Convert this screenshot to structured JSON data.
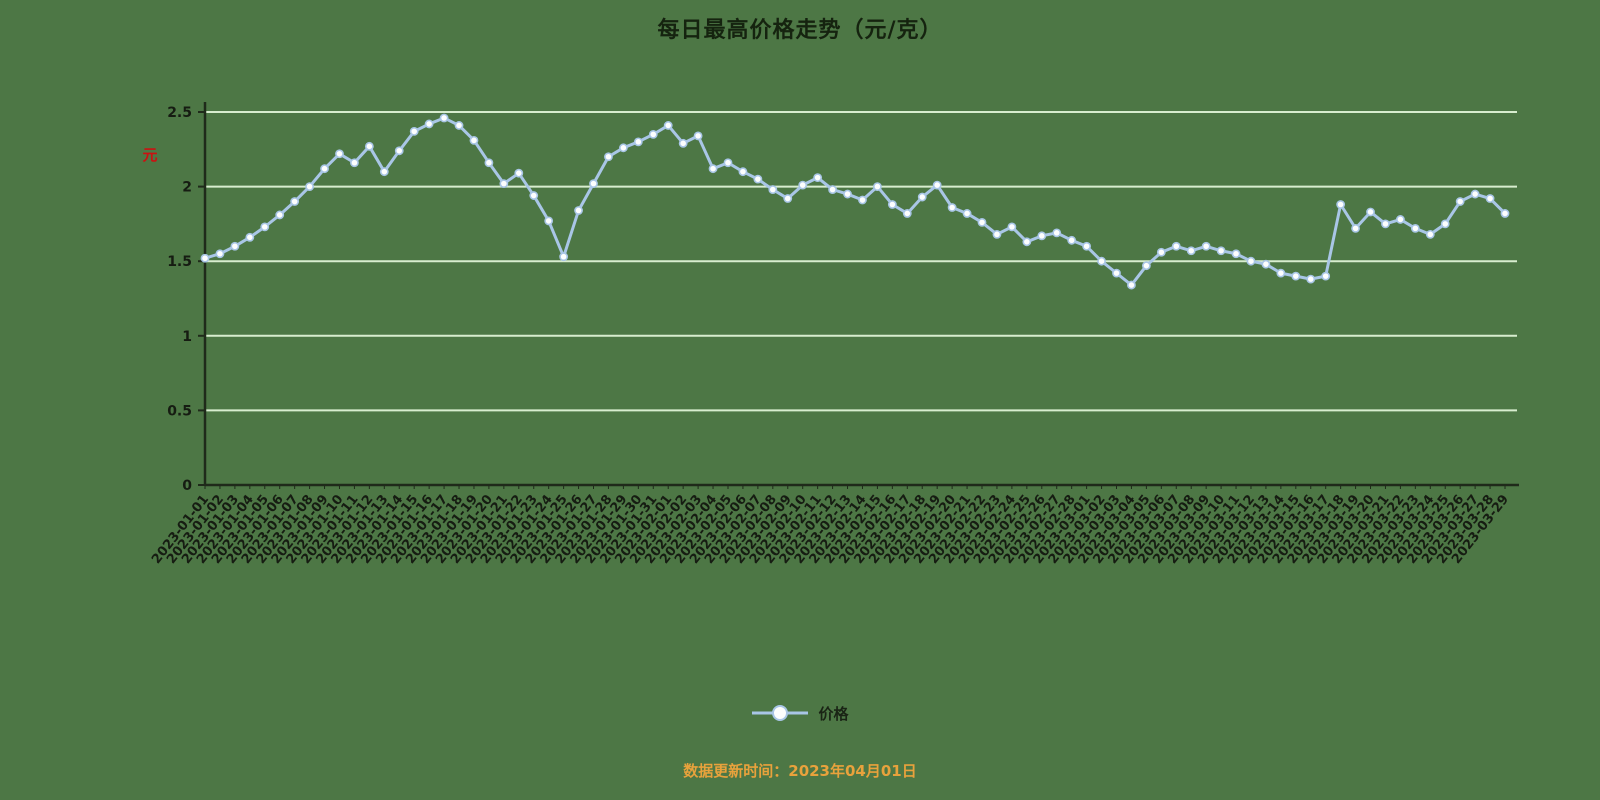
{
  "title": "每日最高价格走势（元/克）",
  "y_axis_unit": "元",
  "legend": {
    "label": "价格"
  },
  "caption": "数据更新时间：2023年04月01日",
  "colors": {
    "background": "#4d7745",
    "grid": "#d8edcf",
    "axis": "#1f2a1a",
    "label": "#161c12",
    "unit": "#cc1111",
    "line": "#a9c6e6",
    "marker_fill": "#fdfefe",
    "caption": "#e8a23c"
  },
  "chart_data": {
    "type": "line",
    "series_name": "价格",
    "title": "每日最高价格走势（元/克）",
    "xlabel": "",
    "ylabel": "元",
    "ylim": [
      0,
      2.5
    ],
    "y_ticks": [
      0,
      0.5,
      1,
      1.5,
      2,
      2.5
    ],
    "y_tick_labels": [
      "0",
      "0.5",
      "1",
      "1.5",
      "2",
      "2.5"
    ],
    "grid": true,
    "legend_position": "bottom",
    "line_color": "#a9c6e6",
    "marker": "circle-white",
    "x": [
      "2023-01-01",
      "2023-01-02",
      "2023-01-03",
      "2023-01-04",
      "2023-01-05",
      "2023-01-06",
      "2023-01-07",
      "2023-01-08",
      "2023-01-09",
      "2023-01-10",
      "2023-01-11",
      "2023-01-12",
      "2023-01-13",
      "2023-01-14",
      "2023-01-15",
      "2023-01-16",
      "2023-01-17",
      "2023-01-18",
      "2023-01-19",
      "2023-01-20",
      "2023-01-21",
      "2023-01-22",
      "2023-01-23",
      "2023-01-24",
      "2023-01-25",
      "2023-01-26",
      "2023-01-27",
      "2023-01-28",
      "2023-01-29",
      "2023-01-30",
      "2023-01-31",
      "2023-02-01",
      "2023-02-02",
      "2023-02-03",
      "2023-02-04",
      "2023-02-05",
      "2023-02-06",
      "2023-02-07",
      "2023-02-08",
      "2023-02-09",
      "2023-02-10",
      "2023-02-11",
      "2023-02-12",
      "2023-02-13",
      "2023-02-14",
      "2023-02-15",
      "2023-02-16",
      "2023-02-17",
      "2023-02-18",
      "2023-02-19",
      "2023-02-20",
      "2023-02-21",
      "2023-02-22",
      "2023-02-23",
      "2023-02-24",
      "2023-02-25",
      "2023-02-26",
      "2023-02-27",
      "2023-02-28",
      "2023-03-01",
      "2023-03-02",
      "2023-03-03",
      "2023-03-04",
      "2023-03-05",
      "2023-03-06",
      "2023-03-07",
      "2023-03-08",
      "2023-03-09",
      "2023-03-10",
      "2023-03-11",
      "2023-03-12",
      "2023-03-13",
      "2023-03-14",
      "2023-03-15",
      "2023-03-16",
      "2023-03-17",
      "2023-03-18",
      "2023-03-19",
      "2023-03-20",
      "2023-03-21",
      "2023-03-22",
      "2023-03-23",
      "2023-03-24",
      "2023-03-25",
      "2023-03-26",
      "2023-03-27",
      "2023-03-28",
      "2023-03-29"
    ],
    "values": [
      1.52,
      1.55,
      1.6,
      1.66,
      1.73,
      1.81,
      1.9,
      2.0,
      2.12,
      2.22,
      2.16,
      2.27,
      2.1,
      2.24,
      2.37,
      2.42,
      2.46,
      2.41,
      2.31,
      2.16,
      2.02,
      2.09,
      1.94,
      1.77,
      1.53,
      1.84,
      2.02,
      2.2,
      2.26,
      2.3,
      2.35,
      2.41,
      2.29,
      2.34,
      2.12,
      2.16,
      2.1,
      2.05,
      1.98,
      1.92,
      2.01,
      2.06,
      1.98,
      1.95,
      1.91,
      2.0,
      1.88,
      1.82,
      1.93,
      2.01,
      1.86,
      1.82,
      1.76,
      1.68,
      1.73,
      1.63,
      1.67,
      1.69,
      1.64,
      1.6,
      1.5,
      1.42,
      1.34,
      1.47,
      1.56,
      1.6,
      1.57,
      1.6,
      1.57,
      1.55,
      1.5,
      1.48,
      1.42,
      1.4,
      1.38,
      1.4,
      1.88,
      1.72,
      1.83,
      1.75,
      1.78,
      1.72,
      1.68,
      1.75,
      1.9,
      1.95,
      1.92,
      1.82
    ]
  }
}
